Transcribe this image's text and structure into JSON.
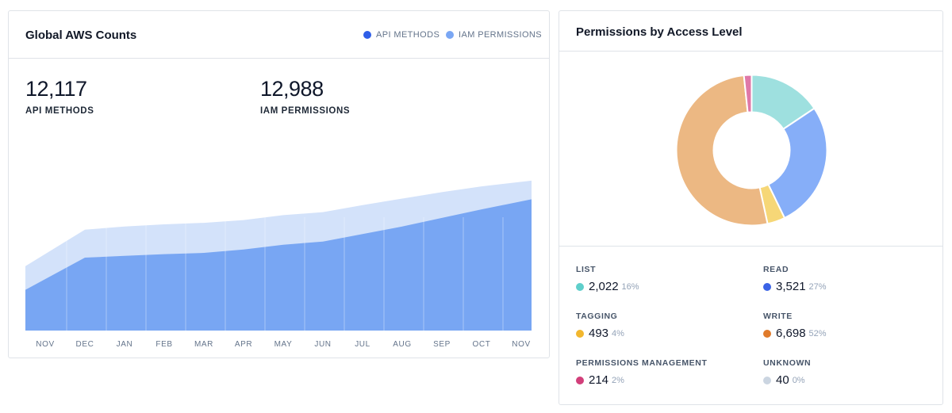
{
  "counts_card": {
    "title": "Global AWS Counts",
    "legend": [
      {
        "label": "API METHODS",
        "color": "#2f5ee8"
      },
      {
        "label": "IAM PERMISSIONS",
        "color": "#7aa7f4"
      }
    ],
    "metrics": [
      {
        "value": "12,117",
        "label": "API METHODS"
      },
      {
        "value": "12,988",
        "label": "IAM PERMISSIONS"
      }
    ]
  },
  "access_card": {
    "title": "Permissions by Access Level",
    "items": [
      {
        "name": "LIST",
        "count": "2,022",
        "pct": "16%",
        "color": "#5fcfcb"
      },
      {
        "name": "READ",
        "count": "3,521",
        "pct": "27%",
        "color": "#3b63e6"
      },
      {
        "name": "TAGGING",
        "count": "493",
        "pct": "4%",
        "color": "#f2b72e"
      },
      {
        "name": "WRITE",
        "count": "6,698",
        "pct": "52%",
        "color": "#e07b2b"
      },
      {
        "name": "PERMISSIONS MANAGEMENT",
        "count": "214",
        "pct": "2%",
        "color": "#d23f7a"
      },
      {
        "name": "UNKNOWN",
        "count": "40",
        "pct": "0%",
        "color": "#cbd5e1"
      }
    ]
  },
  "chart_data": [
    {
      "type": "area",
      "categories": [
        "NOV",
        "DEC",
        "JAN",
        "FEB",
        "MAR",
        "APR",
        "MAY",
        "JUN",
        "JUL",
        "AUG",
        "SEP",
        "OCT",
        "NOV"
      ],
      "series": [
        {
          "name": "IAM PERMISSIONS",
          "color": "#d3e2fa",
          "values": [
            9000,
            10700,
            10850,
            10950,
            11020,
            11150,
            11380,
            11520,
            11850,
            12150,
            12450,
            12720,
            12988
          ]
        },
        {
          "name": "API METHODS",
          "color": "#78a6f3",
          "values": [
            7900,
            9400,
            9480,
            9560,
            9620,
            9780,
            10000,
            10150,
            10500,
            10850,
            11250,
            11650,
            12117
          ]
        }
      ],
      "ylim": [
        6000,
        13500
      ],
      "grid": false
    },
    {
      "type": "pie",
      "categories": [
        "LIST",
        "READ",
        "TAGGING",
        "WRITE",
        "PERMISSIONS MANAGEMENT"
      ],
      "values": [
        2022,
        3521,
        493,
        6698,
        214
      ],
      "colors": [
        "#9ee0df",
        "#86aef8",
        "#f6d777",
        "#ecb883",
        "#df78a8"
      ]
    }
  ]
}
